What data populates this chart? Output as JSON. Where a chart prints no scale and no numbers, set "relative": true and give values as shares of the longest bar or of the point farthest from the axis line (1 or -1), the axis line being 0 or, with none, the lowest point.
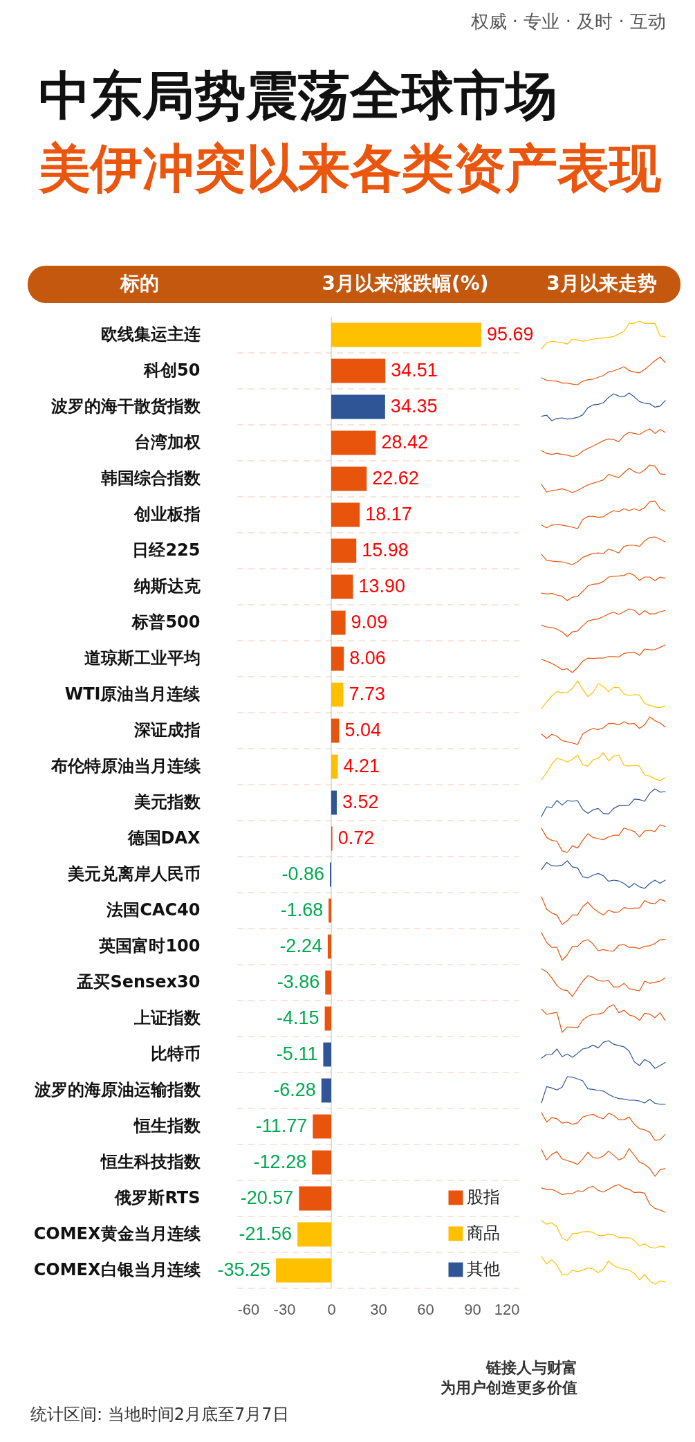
{
  "chart_data": [
    {
      "type": "bar",
      "orientation": "horizontal",
      "stacked": true,
      "title": "中东局势震荡全球市场",
      "subtitle": "美伊冲突以来各类资产表现",
      "ylabel": "标的",
      "xlabel": "3月以来涨跌幅(%)",
      "categories": [
        "欧线集运主连",
        "科创50",
        "波罗的海干散货指数",
        "台湾加权",
        "韩国综合指数",
        "创业板指",
        "日经225",
        "纳斯达克",
        "标普500",
        "道琼斯工业平均",
        "WTI原油当月连续",
        "深证成指",
        "布伦特原油当月连续",
        "美元指数",
        "德国DAX",
        "美元兑离岸人民币",
        "法国CAC40",
        "英国富时100",
        "孟买Sensex30",
        "上证指数",
        "比特币",
        "波罗的海原油运输指数",
        "恒生指数",
        "恒生科技指数",
        "俄罗斯RTS",
        "COMEX黄金当月连续",
        "COMEX白银当月连续"
      ],
      "series": [
        {
          "name": "股指",
          "color": "#e8540c",
          "values": [
            null,
            34.51,
            null,
            28.42,
            22.62,
            18.17,
            15.98,
            13.9,
            9.09,
            8.06,
            null,
            5.04,
            null,
            null,
            0.72,
            null,
            -1.68,
            -2.24,
            -3.86,
            -4.15,
            null,
            null,
            -11.77,
            -12.28,
            -20.57,
            null,
            null
          ],
          "value_labels": [
            null,
            "34.51",
            null,
            "28.42",
            "22.62",
            "18.17",
            "15.98",
            "13.90",
            "9.09",
            "8.06",
            null,
            "5.04",
            null,
            null,
            "0.72",
            null,
            "-1.68",
            "-2.24",
            "-3.86",
            "-4.15",
            null,
            null,
            "-11.77",
            "-12.28",
            "-20.57",
            null,
            null
          ]
        },
        {
          "name": "商品",
          "color": "#ffc000",
          "values": [
            95.69,
            null,
            null,
            null,
            null,
            null,
            null,
            null,
            null,
            null,
            7.73,
            null,
            4.21,
            null,
            null,
            null,
            null,
            null,
            null,
            null,
            null,
            null,
            null,
            null,
            null,
            -21.56,
            -35.25
          ],
          "value_labels": [
            "95.69",
            null,
            null,
            null,
            null,
            null,
            null,
            null,
            null,
            null,
            "7.73",
            null,
            "4.21",
            null,
            null,
            null,
            null,
            null,
            null,
            null,
            null,
            null,
            null,
            null,
            null,
            "-21.56",
            "-35.25"
          ]
        },
        {
          "name": "其他",
          "color": "#2f5597",
          "values": [
            null,
            null,
            34.35,
            null,
            null,
            null,
            null,
            null,
            null,
            null,
            null,
            null,
            null,
            3.52,
            null,
            -0.86,
            null,
            null,
            null,
            null,
            -5.11,
            -6.28,
            null,
            null,
            null,
            null,
            null
          ],
          "value_labels": [
            null,
            null,
            "34.35",
            null,
            null,
            null,
            null,
            null,
            null,
            null,
            null,
            null,
            null,
            "3.52",
            null,
            "-0.86",
            null,
            null,
            null,
            null,
            "-5.11",
            "-6.28",
            null,
            null,
            null,
            null,
            null
          ]
        }
      ],
      "xlim": [
        -60,
        120
      ],
      "xticks": [
        -60,
        -30,
        0,
        30,
        60,
        90,
        120
      ],
      "grid": "y",
      "legend": "bottom right",
      "ref_lines": [
        {
          "axis": "x",
          "value": 0,
          "color": "#c8c8c8"
        }
      ],
      "annotations": [
        "权威 · 专业 · 及时 · 互动",
        "统计区间: 当地时间2月底至7月7日",
        "链接人与财富",
        "为用户创造更多价值"
      ]
    },
    {
      "type": "line",
      "relative": true,
      "title": "3月以来走势",
      "categories": [
        null,
        null,
        null,
        null,
        null,
        null,
        null,
        null,
        null,
        null,
        null,
        null,
        null,
        null,
        null,
        null,
        null,
        null,
        null,
        null,
        null,
        null,
        null,
        null,
        null
      ],
      "series": [
        {
          "color": "#ffc000",
          "values": [
            0,
            0.21,
            0.27,
            0.24,
            0.22,
            0.17,
            0.35,
            0.31,
            0.27,
            0.31,
            0.35,
            0.37,
            0.39,
            0.41,
            0.44,
            0.53,
            0.63,
            0.92,
            0.92,
            1,
            0.92,
            0.92,
            0.91,
            0.46,
            0.43
          ]
        }
      ]
    },
    {
      "type": "line",
      "relative": true,
      "categories": [
        null,
        null,
        null,
        null,
        null,
        null,
        null,
        null,
        null,
        null,
        null,
        null,
        null,
        null,
        null,
        null,
        null,
        null,
        null,
        null,
        null,
        null,
        null,
        null,
        null
      ],
      "series": [
        {
          "color": "#e8540c",
          "values": [
            0.25,
            0.16,
            0.14,
            0.13,
            0.06,
            0.06,
            0.02,
            0,
            0.13,
            0.18,
            0.2,
            0.27,
            0.33,
            0.46,
            0.5,
            0.57,
            0.65,
            0.51,
            0.46,
            0.43,
            0.55,
            0.71,
            0.87,
            1,
            0.8
          ]
        }
      ]
    },
    {
      "type": "line",
      "relative": true,
      "categories": [
        null,
        null,
        null,
        null,
        null,
        null,
        null,
        null,
        null,
        null,
        null,
        null,
        null,
        null,
        null,
        null,
        null,
        null,
        null,
        null,
        null,
        null,
        null,
        null,
        null
      ],
      "series": [
        {
          "color": "#2f5597",
          "values": [
            0.16,
            0.2,
            0,
            0.08,
            0.1,
            0.06,
            0.08,
            0.12,
            0.21,
            0.47,
            0.57,
            0.59,
            0.65,
            0.84,
            0.97,
            0.89,
            0.87,
            1,
            0.86,
            0.69,
            0.63,
            0.61,
            0.49,
            0.53,
            0.73
          ]
        }
      ]
    },
    {
      "type": "line",
      "relative": true,
      "categories": [
        null,
        null,
        null,
        null,
        null,
        null,
        null,
        null,
        null,
        null,
        null,
        null,
        null,
        null,
        null,
        null,
        null,
        null,
        null,
        null,
        null,
        null,
        null,
        null,
        null
      ],
      "series": [
        {
          "color": "#e8540c",
          "values": [
            0.22,
            0.12,
            0.08,
            0.12,
            0.08,
            0.06,
            0,
            0.05,
            0.2,
            0.3,
            0.38,
            0.48,
            0.58,
            0.64,
            0.62,
            0.54,
            0.76,
            0.88,
            0.84,
            0.8,
            0.92,
            1,
            0.84,
            0.98,
            0.88
          ]
        }
      ]
    },
    {
      "type": "line",
      "relative": true,
      "categories": [
        null,
        null,
        null,
        null,
        null,
        null,
        null,
        null,
        null,
        null,
        null,
        null,
        null,
        null,
        null,
        null,
        null,
        null,
        null,
        null,
        null,
        null,
        null,
        null,
        null
      ],
      "series": [
        {
          "color": "#e8540c",
          "values": [
            0.3,
            0.02,
            0.08,
            0.1,
            0.14,
            0.08,
            0,
            0.08,
            0.18,
            0.28,
            0.34,
            0.4,
            0.46,
            0.66,
            0.6,
            0.54,
            0.72,
            0.88,
            0.76,
            0.7,
            0.82,
            1,
            0.96,
            0.68,
            0.66
          ]
        }
      ]
    },
    {
      "type": "line",
      "relative": true,
      "categories": [
        null,
        null,
        null,
        null,
        null,
        null,
        null,
        null,
        null,
        null,
        null,
        null,
        null,
        null,
        null,
        null,
        null,
        null,
        null,
        null,
        null,
        null,
        null,
        null,
        null
      ],
      "series": [
        {
          "color": "#e8540c",
          "values": [
            0.13,
            0.03,
            0.13,
            0.15,
            0.13,
            0.09,
            0.05,
            0,
            0.33,
            0.44,
            0.45,
            0.41,
            0.43,
            0.55,
            0.65,
            0.61,
            0.72,
            0.65,
            0.72,
            0.65,
            0.76,
            0.98,
            1,
            0.72,
            0.63
          ]
        }
      ]
    },
    {
      "type": "line",
      "relative": true,
      "categories": [
        null,
        null,
        null,
        null,
        null,
        null,
        null,
        null,
        null,
        null,
        null,
        null,
        null,
        null,
        null,
        null,
        null,
        null,
        null,
        null,
        null,
        null,
        null,
        null,
        null
      ],
      "series": [
        {
          "color": "#e8540c",
          "values": [
            0.37,
            0.16,
            0.13,
            0.11,
            0.1,
            0.05,
            0,
            0.1,
            0.26,
            0.34,
            0.4,
            0.42,
            0.4,
            0.56,
            0.5,
            0.42,
            0.66,
            0.7,
            0.7,
            0.66,
            0.86,
            0.98,
            1,
            0.92,
            0.82
          ]
        }
      ]
    },
    {
      "type": "line",
      "relative": true,
      "categories": [
        null,
        null,
        null,
        null,
        null,
        null,
        null,
        null,
        null,
        null,
        null,
        null,
        null,
        null,
        null,
        null,
        null,
        null,
        null,
        null,
        null,
        null,
        null,
        null,
        null
      ],
      "series": [
        {
          "color": "#e8540c",
          "values": [
            0.27,
            0.24,
            0.26,
            0.2,
            0.16,
            0,
            0.12,
            0.15,
            0.33,
            0.53,
            0.59,
            0.61,
            0.69,
            0.85,
            0.88,
            0.89,
            0.91,
            1,
            0.91,
            0.73,
            0.85,
            0.85,
            0.72,
            0.85,
            0.81
          ]
        }
      ]
    },
    {
      "type": "line",
      "relative": true,
      "categories": [
        null,
        null,
        null,
        null,
        null,
        null,
        null,
        null,
        null,
        null,
        null,
        null,
        null,
        null,
        null,
        null,
        null,
        null,
        null,
        null,
        null,
        null,
        null,
        null,
        null
      ],
      "series": [
        {
          "color": "#e8540c",
          "values": [
            0.41,
            0.35,
            0.33,
            0.27,
            0.17,
            0,
            0.17,
            0.2,
            0.39,
            0.56,
            0.61,
            0.64,
            0.72,
            0.82,
            0.88,
            0.8,
            0.9,
            1,
            0.95,
            0.78,
            0.94,
            0.82,
            0.82,
            0.9,
            0.94
          ]
        }
      ]
    },
    {
      "type": "line",
      "relative": true,
      "categories": [
        null,
        null,
        null,
        null,
        null,
        null,
        null,
        null,
        null,
        null,
        null,
        null,
        null,
        null,
        null,
        null,
        null,
        null,
        null,
        null,
        null,
        null,
        null,
        null,
        null
      ],
      "series": [
        {
          "color": "#e8540c",
          "values": [
            0.48,
            0.41,
            0.33,
            0.23,
            0.1,
            0.14,
            0,
            0.18,
            0.41,
            0.52,
            0.51,
            0.52,
            0.52,
            0.58,
            0.58,
            0.56,
            0.69,
            0.72,
            0.74,
            0.62,
            0.85,
            0.82,
            0.83,
            0.91,
            1
          ]
        }
      ]
    },
    {
      "type": "line",
      "relative": true,
      "categories": [
        null,
        null,
        null,
        null,
        null,
        null,
        null,
        null,
        null,
        null,
        null,
        null,
        null,
        null,
        null,
        null,
        null,
        null,
        null,
        null,
        null,
        null,
        null,
        null,
        null
      ],
      "series": [
        {
          "color": "#ffc000",
          "values": [
            0,
            0.24,
            0.45,
            0.61,
            0.57,
            0.58,
            0.72,
            1,
            0.69,
            0.43,
            0.58,
            0.9,
            0.8,
            0.61,
            0.76,
            0.76,
            0.53,
            0.47,
            0.5,
            0.49,
            0.19,
            0.11,
            0.06,
            0.03,
            0.09
          ]
        }
      ]
    },
    {
      "type": "line",
      "relative": true,
      "categories": [
        null,
        null,
        null,
        null,
        null,
        null,
        null,
        null,
        null,
        null,
        null,
        null,
        null,
        null,
        null,
        null,
        null,
        null,
        null,
        null,
        null,
        null,
        null,
        null,
        null
      ],
      "series": [
        {
          "color": "#e8540c",
          "values": [
            0.38,
            0.22,
            0.37,
            0.3,
            0.14,
            0.1,
            0.06,
            0,
            0.38,
            0.5,
            0.58,
            0.54,
            0.6,
            0.76,
            0.76,
            0.71,
            0.82,
            0.74,
            0.76,
            0.58,
            0.71,
            1,
            0.86,
            0.78,
            0.63
          ]
        }
      ]
    },
    {
      "type": "line",
      "relative": true,
      "categories": [
        null,
        null,
        null,
        null,
        null,
        null,
        null,
        null,
        null,
        null,
        null,
        null,
        null,
        null,
        null,
        null,
        null,
        null,
        null,
        null,
        null,
        null,
        null,
        null,
        null
      ],
      "series": [
        {
          "color": "#ffc000",
          "values": [
            0.03,
            0.28,
            0.59,
            0.8,
            0.75,
            0.67,
            0.77,
            0.92,
            0.57,
            0.52,
            0.75,
            0.8,
            1,
            0.71,
            0.88,
            0.92,
            0.55,
            0.52,
            0.55,
            0.52,
            0.2,
            0.16,
            0.06,
            0,
            0.1
          ]
        }
      ]
    },
    {
      "type": "line",
      "relative": true,
      "categories": [
        null,
        null,
        null,
        null,
        null,
        null,
        null,
        null,
        null,
        null,
        null,
        null,
        null,
        null,
        null,
        null,
        null,
        null,
        null,
        null,
        null,
        null,
        null,
        null,
        null
      ],
      "series": [
        {
          "color": "#2f5597",
          "values": [
            0,
            0.35,
            0.33,
            0.58,
            0.41,
            0.57,
            0.55,
            0.57,
            0.25,
            0.11,
            0.24,
            0.29,
            0.11,
            0.09,
            0.29,
            0.39,
            0.39,
            0.41,
            0.63,
            0.61,
            0.55,
            0.84,
            1,
            0.88,
            0.9
          ]
        }
      ]
    },
    {
      "type": "line",
      "relative": true,
      "categories": [
        null,
        null,
        null,
        null,
        null,
        null,
        null,
        null,
        null,
        null,
        null,
        null,
        null,
        null,
        null,
        null,
        null,
        null,
        null,
        null,
        null,
        null,
        null,
        null,
        null
      ],
      "series": [
        {
          "color": "#e8540c",
          "values": [
            0.88,
            0.54,
            0.44,
            0.4,
            0.06,
            0,
            0.24,
            0.16,
            0.44,
            0.68,
            0.54,
            0.5,
            0.46,
            0.56,
            0.62,
            0.62,
            0.88,
            0.82,
            0.76,
            0.56,
            0.78,
            0.8,
            0.76,
            1,
            0.94
          ]
        }
      ]
    },
    {
      "type": "line",
      "relative": true,
      "categories": [
        null,
        null,
        null,
        null,
        null,
        null,
        null,
        null,
        null,
        null,
        null,
        null,
        null,
        null,
        null,
        null,
        null,
        null,
        null,
        null,
        null,
        null,
        null,
        null,
        null
      ],
      "series": [
        {
          "color": "#2f5597",
          "values": [
            0.68,
            0.94,
            0.82,
            0.81,
            0.84,
            1,
            0.78,
            0.74,
            0.42,
            0.38,
            0.48,
            0.54,
            0.46,
            0.26,
            0.3,
            0.27,
            0.18,
            0.03,
            0.18,
            0.06,
            0,
            0.18,
            0.3,
            0.19,
            0.3
          ]
        }
      ]
    },
    {
      "type": "line",
      "relative": true,
      "categories": [
        null,
        null,
        null,
        null,
        null,
        null,
        null,
        null,
        null,
        null,
        null,
        null,
        null,
        null,
        null,
        null,
        null,
        null,
        null,
        null,
        null,
        null,
        null,
        null,
        null
      ],
      "series": [
        {
          "color": "#e8540c",
          "values": [
            1,
            0.55,
            0.41,
            0.34,
            0,
            0.13,
            0.34,
            0.34,
            0.65,
            0.8,
            0.59,
            0.45,
            0.34,
            0.52,
            0.44,
            0.45,
            0.61,
            0.57,
            0.59,
            0.59,
            0.86,
            0.77,
            0.75,
            0.91,
            0.84
          ]
        }
      ]
    },
    {
      "type": "line",
      "relative": true,
      "categories": [
        null,
        null,
        null,
        null,
        null,
        null,
        null,
        null,
        null,
        null,
        null,
        null,
        null,
        null,
        null,
        null,
        null,
        null,
        null,
        null,
        null,
        null,
        null,
        null,
        null
      ],
      "series": [
        {
          "color": "#e8540c",
          "values": [
            1,
            0.65,
            0.47,
            0.47,
            0,
            0.2,
            0.51,
            0.51,
            0.69,
            0.75,
            0.59,
            0.35,
            0.39,
            0.35,
            0.34,
            0.55,
            0.57,
            0.47,
            0.47,
            0.43,
            0.51,
            0.53,
            0.61,
            0.75,
            0.76
          ]
        }
      ]
    },
    {
      "type": "line",
      "relative": true,
      "categories": [
        null,
        null,
        null,
        null,
        null,
        null,
        null,
        null,
        null,
        null,
        null,
        null,
        null,
        null,
        null,
        null,
        null,
        null,
        null,
        null,
        null,
        null,
        null,
        null,
        null
      ],
      "series": [
        {
          "color": "#e8540c",
          "values": [
            1,
            0.89,
            0.67,
            0.39,
            0.24,
            0.21,
            0,
            0.28,
            0.55,
            0.75,
            0.69,
            0.57,
            0.55,
            0.57,
            0.34,
            0.34,
            0.47,
            0.28,
            0.24,
            0.2,
            0.55,
            0.47,
            0.51,
            0.55,
            0.67
          ]
        }
      ]
    },
    {
      "type": "line",
      "relative": true,
      "categories": [
        null,
        null,
        null,
        null,
        null,
        null,
        null,
        null,
        null,
        null,
        null,
        null,
        null,
        null,
        null,
        null,
        null,
        null,
        null,
        null,
        null,
        null,
        null,
        null,
        null
      ],
      "series": [
        {
          "color": "#e8540c",
          "values": [
            0.84,
            0.65,
            0.69,
            0.72,
            0,
            0.19,
            0.19,
            0.16,
            0.45,
            0.58,
            0.65,
            0.66,
            0.71,
            0.92,
            1,
            0.71,
            0.8,
            0.63,
            0.58,
            0.43,
            0.69,
            0.66,
            0.53,
            0.71,
            0.43
          ]
        }
      ]
    },
    {
      "type": "line",
      "relative": true,
      "categories": [
        null,
        null,
        null,
        null,
        null,
        null,
        null,
        null,
        null,
        null,
        null,
        null,
        null,
        null,
        null,
        null,
        null,
        null,
        null,
        null,
        null,
        null,
        null,
        null,
        null
      ],
      "series": [
        {
          "color": "#2f5597",
          "values": [
            0.37,
            0.5,
            0.5,
            0.7,
            0.42,
            0.52,
            0.4,
            0.54,
            0.7,
            0.74,
            0.84,
            0.74,
            0.94,
            1,
            0.87,
            0.82,
            0.78,
            0.62,
            0.24,
            0.1,
            0.32,
            0.22,
            0,
            0.1,
            0.21
          ]
        }
      ]
    },
    {
      "type": "line",
      "relative": true,
      "categories": [
        null,
        null,
        null,
        null,
        null,
        null,
        null,
        null,
        null,
        null,
        null,
        null,
        null,
        null,
        null,
        null,
        null,
        null,
        null,
        null,
        null,
        null,
        null,
        null,
        null
      ],
      "series": [
        {
          "color": "#2f5597",
          "values": [
            0.05,
            0.64,
            0.59,
            0.52,
            0.62,
            1,
            0.98,
            0.92,
            0.85,
            0.56,
            0.54,
            0.5,
            0.48,
            0.36,
            0.27,
            0.21,
            0.19,
            0.15,
            0.15,
            0.12,
            0.05,
            0.18,
            0.04,
            0,
            0
          ]
        }
      ]
    },
    {
      "type": "line",
      "relative": true,
      "categories": [
        null,
        null,
        null,
        null,
        null,
        null,
        null,
        null,
        null,
        null,
        null,
        null,
        null,
        null,
        null,
        null,
        null,
        null,
        null,
        null,
        null,
        null,
        null,
        null,
        null
      ],
      "series": [
        {
          "color": "#e8540c",
          "values": [
            1,
            0.66,
            0.82,
            0.78,
            0.62,
            0.66,
            0.58,
            0.63,
            0.84,
            0.9,
            0.94,
            0.84,
            0.78,
            0.98,
            0.9,
            0.74,
            0.74,
            0.84,
            0.58,
            0.42,
            0.38,
            0.29,
            0,
            0.02,
            0.21
          ]
        }
      ]
    },
    {
      "type": "line",
      "relative": true,
      "categories": [
        null,
        null,
        null,
        null,
        null,
        null,
        null,
        null,
        null,
        null,
        null,
        null,
        null,
        null,
        null,
        null,
        null,
        null,
        null,
        null,
        null,
        null,
        null,
        null,
        null
      ],
      "series": [
        {
          "color": "#e8540c",
          "values": [
            0.97,
            0.59,
            0.79,
            0.89,
            0.63,
            0.57,
            0.51,
            0.43,
            0.63,
            0.87,
            0.67,
            0.65,
            0.73,
            0.91,
            0.76,
            0.59,
            0.67,
            1,
            0.76,
            0.51,
            0.43,
            0.28,
            0,
            0.24,
            0.28
          ]
        }
      ]
    },
    {
      "type": "line",
      "relative": true,
      "categories": [
        null,
        null,
        null,
        null,
        null,
        null,
        null,
        null,
        null,
        null,
        null,
        null,
        null,
        null,
        null,
        null,
        null,
        null,
        null,
        null,
        null,
        null,
        null,
        null,
        null
      ],
      "series": [
        {
          "color": "#e8540c",
          "values": [
            0.88,
            0.83,
            0.83,
            0.75,
            0.64,
            0.67,
            0.67,
            0.78,
            0.75,
            0.88,
            0.94,
            0.79,
            0.73,
            0.83,
            0.94,
            1,
            0.88,
            0.83,
            0.71,
            0.73,
            0.69,
            0.29,
            0.14,
            0.08,
            0
          ]
        }
      ]
    },
    {
      "type": "line",
      "relative": true,
      "categories": [
        null,
        null,
        null,
        null,
        null,
        null,
        null,
        null,
        null,
        null,
        null,
        null,
        null,
        null,
        null,
        null,
        null,
        null,
        null,
        null,
        null,
        null,
        null,
        null,
        null
      ],
      "series": [
        {
          "color": "#ffc000",
          "values": [
            1,
            0.87,
            0.92,
            0.77,
            0.37,
            0.27,
            0.53,
            0.54,
            0.59,
            0.61,
            0.57,
            0.46,
            0.46,
            0.51,
            0.49,
            0.38,
            0.38,
            0.38,
            0.28,
            0.08,
            0.16,
            0.04,
            0,
            0.08,
            0.04
          ]
        }
      ]
    },
    {
      "type": "line",
      "relative": true,
      "categories": [
        null,
        null,
        null,
        null,
        null,
        null,
        null,
        null,
        null,
        null,
        null,
        null,
        null,
        null,
        null,
        null,
        null,
        null,
        null,
        null,
        null,
        null,
        null,
        null,
        null
      ],
      "series": [
        {
          "color": "#ffc000",
          "values": [
            1,
            0.73,
            0.89,
            0.69,
            0.34,
            0.34,
            0.51,
            0.45,
            0.51,
            0.59,
            0.55,
            0.42,
            0.55,
            0.84,
            0.67,
            0.59,
            0.55,
            0.51,
            0.39,
            0.16,
            0.35,
            0.12,
            0,
            0.12,
            0.08
          ]
        }
      ]
    }
  ]
}
